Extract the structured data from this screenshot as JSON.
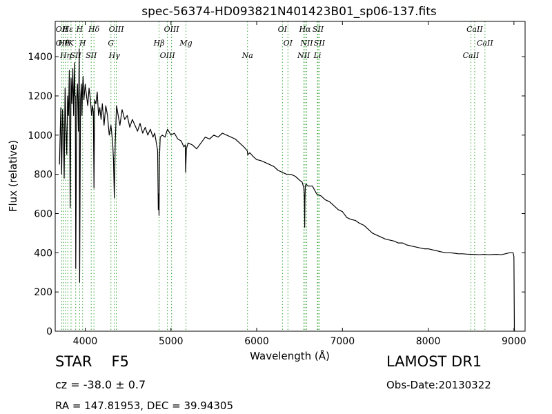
{
  "chart_data": {
    "type": "line",
    "title": "spec-56374-HD093821N401423B01_sp06-137.fits",
    "xlabel": "Wavelength (Å)",
    "ylabel": "Flux (relative)",
    "xlim": [
      3650,
      9130
    ],
    "ylim": [
      0,
      1580
    ],
    "xticks": [
      4000,
      5000,
      6000,
      7000,
      8000,
      9000
    ],
    "yticks": [
      0,
      200,
      400,
      600,
      800,
      1000,
      1200,
      1400
    ],
    "grid": false,
    "line_color": "#000000",
    "marker_color": "#2ca02c",
    "series": [
      {
        "x": [
          3700,
          3715,
          3725,
          3735,
          3745,
          3755,
          3765,
          3775,
          3785,
          3795,
          3805,
          3815,
          3825,
          3835,
          3845,
          3855,
          3865,
          3875,
          3880,
          3885,
          3890,
          3900,
          3910,
          3920,
          3930,
          3935,
          3945,
          3955,
          3962,
          3968,
          3975,
          3985,
          4000,
          4015,
          4030,
          4045,
          4060,
          4075,
          4085,
          4095,
          4102,
          4110,
          4125,
          4140,
          4155,
          4170,
          4185,
          4200,
          4220,
          4240,
          4260,
          4280,
          4300,
          4320,
          4330,
          4340,
          4350,
          4365,
          4385,
          4405,
          4430,
          4460,
          4490,
          4520,
          4550,
          4580,
          4610,
          4640,
          4670,
          4700,
          4730,
          4760,
          4790,
          4810,
          4830,
          4845,
          4852,
          4858,
          4861,
          4866,
          4875,
          4900,
          4930,
          4960,
          5000,
          5040,
          5080,
          5120,
          5150,
          5167,
          5172,
          5180,
          5200,
          5250,
          5300,
          5350,
          5400,
          5450,
          5500,
          5550,
          5600,
          5650,
          5700,
          5750,
          5800,
          5850,
          5890,
          5895,
          5920,
          5960,
          6000,
          6050,
          6100,
          6150,
          6200,
          6250,
          6300,
          6350,
          6400,
          6450,
          6500,
          6530,
          6550,
          6556,
          6560,
          6563,
          6567,
          6575,
          6600,
          6650,
          6700,
          6750,
          6800,
          6850,
          6900,
          6950,
          7000,
          7050,
          7100,
          7150,
          7200,
          7250,
          7300,
          7350,
          7400,
          7450,
          7500,
          7550,
          7600,
          7650,
          7700,
          7750,
          7800,
          7850,
          7900,
          7950,
          8000,
          8050,
          8100,
          8150,
          8200,
          8250,
          8300,
          8350,
          8400,
          8450,
          8500,
          8550,
          8600,
          8650,
          8700,
          8750,
          8800,
          8850,
          8900,
          8950,
          8975,
          8990,
          9000,
          9005
        ],
        "y": [
          850,
          1140,
          800,
          1130,
          1020,
          780,
          1240,
          1050,
          900,
          1200,
          1100,
          1330,
          630,
          1290,
          1160,
          1340,
          1100,
          1370,
          1200,
          1200,
          320,
          1180,
          1260,
          1020,
          1440,
          250,
          1180,
          1260,
          1100,
          1230,
          1300,
          1180,
          1260,
          1200,
          1150,
          1240,
          1180,
          1100,
          1150,
          1120,
          730,
          1180,
          1160,
          1220,
          1100,
          1140,
          1080,
          1160,
          1050,
          1150,
          1100,
          1000,
          1050,
          960,
          870,
          680,
          960,
          1150,
          1100,
          1050,
          1130,
          1080,
          1100,
          1040,
          1080,
          1050,
          1020,
          1060,
          1010,
          1040,
          1000,
          1030,
          990,
          1010,
          960,
          920,
          620,
          700,
          590,
          880,
          990,
          1000,
          990,
          1030,
          1000,
          1010,
          980,
          970,
          940,
          950,
          810,
          930,
          960,
          950,
          930,
          960,
          990,
          980,
          1000,
          990,
          1010,
          1000,
          990,
          980,
          960,
          940,
          920,
          900,
          910,
          890,
          875,
          870,
          860,
          850,
          840,
          820,
          810,
          800,
          800,
          790,
          770,
          760,
          730,
          680,
          530,
          670,
          740,
          750,
          740,
          740,
          700,
          690,
          670,
          660,
          640,
          620,
          610,
          580,
          570,
          565,
          550,
          540,
          520,
          500,
          490,
          480,
          470,
          465,
          460,
          450,
          450,
          440,
          435,
          430,
          425,
          420,
          420,
          415,
          410,
          405,
          400,
          400,
          398,
          395,
          395,
          393,
          392,
          391,
          390,
          392,
          390,
          391,
          392,
          390,
          395,
          400,
          400,
          400,
          380,
          0
        ]
      }
    ],
    "lines": [
      {
        "x": 3727,
        "label": "OII",
        "label2": "OII"
      },
      {
        "x": 3750,
        "label": "Hθ"
      },
      {
        "x": 3771,
        "label": "Hη"
      },
      {
        "x": 3798,
        "label": "Hε"
      },
      {
        "x": 3835,
        "label": "K"
      },
      {
        "x": 3889,
        "label": "SII"
      },
      {
        "x": 3934,
        "label": "H"
      },
      {
        "x": 3970,
        "label": "H"
      },
      {
        "x": 4070,
        "label": "SII"
      },
      {
        "x": 4102,
        "label": "Hδ"
      },
      {
        "x": 4300,
        "label": "G"
      },
      {
        "x": 4340,
        "label": "Hγ"
      },
      {
        "x": 4363,
        "label": "OIII"
      },
      {
        "x": 4861,
        "label": "Hβ"
      },
      {
        "x": 4959,
        "label": "OIII"
      },
      {
        "x": 5007,
        "label": "OIII"
      },
      {
        "x": 5175,
        "label": "Mg"
      },
      {
        "x": 5893,
        "label": "Na"
      },
      {
        "x": 6300,
        "label": "OI"
      },
      {
        "x": 6364,
        "label": "OI"
      },
      {
        "x": 6548,
        "label": "NII"
      },
      {
        "x": 6563,
        "label": "Hα"
      },
      {
        "x": 6583,
        "label": "NII"
      },
      {
        "x": 6708,
        "label": "Li"
      },
      {
        "x": 6716,
        "label": "SII"
      },
      {
        "x": 6731,
        "label": "SII"
      },
      {
        "x": 8498,
        "label": "CaII"
      },
      {
        "x": 8542,
        "label": "CaII"
      },
      {
        "x": 8662,
        "label": "CaII"
      }
    ]
  },
  "info": {
    "class": "STAR",
    "subclass": "F5",
    "survey": "LAMOST DR1",
    "cz": "cz = -38.0 ± 0.7",
    "obs_date": "Obs-Date:20130322",
    "radec": "RA = 147.81953, DEC = 39.94305"
  }
}
